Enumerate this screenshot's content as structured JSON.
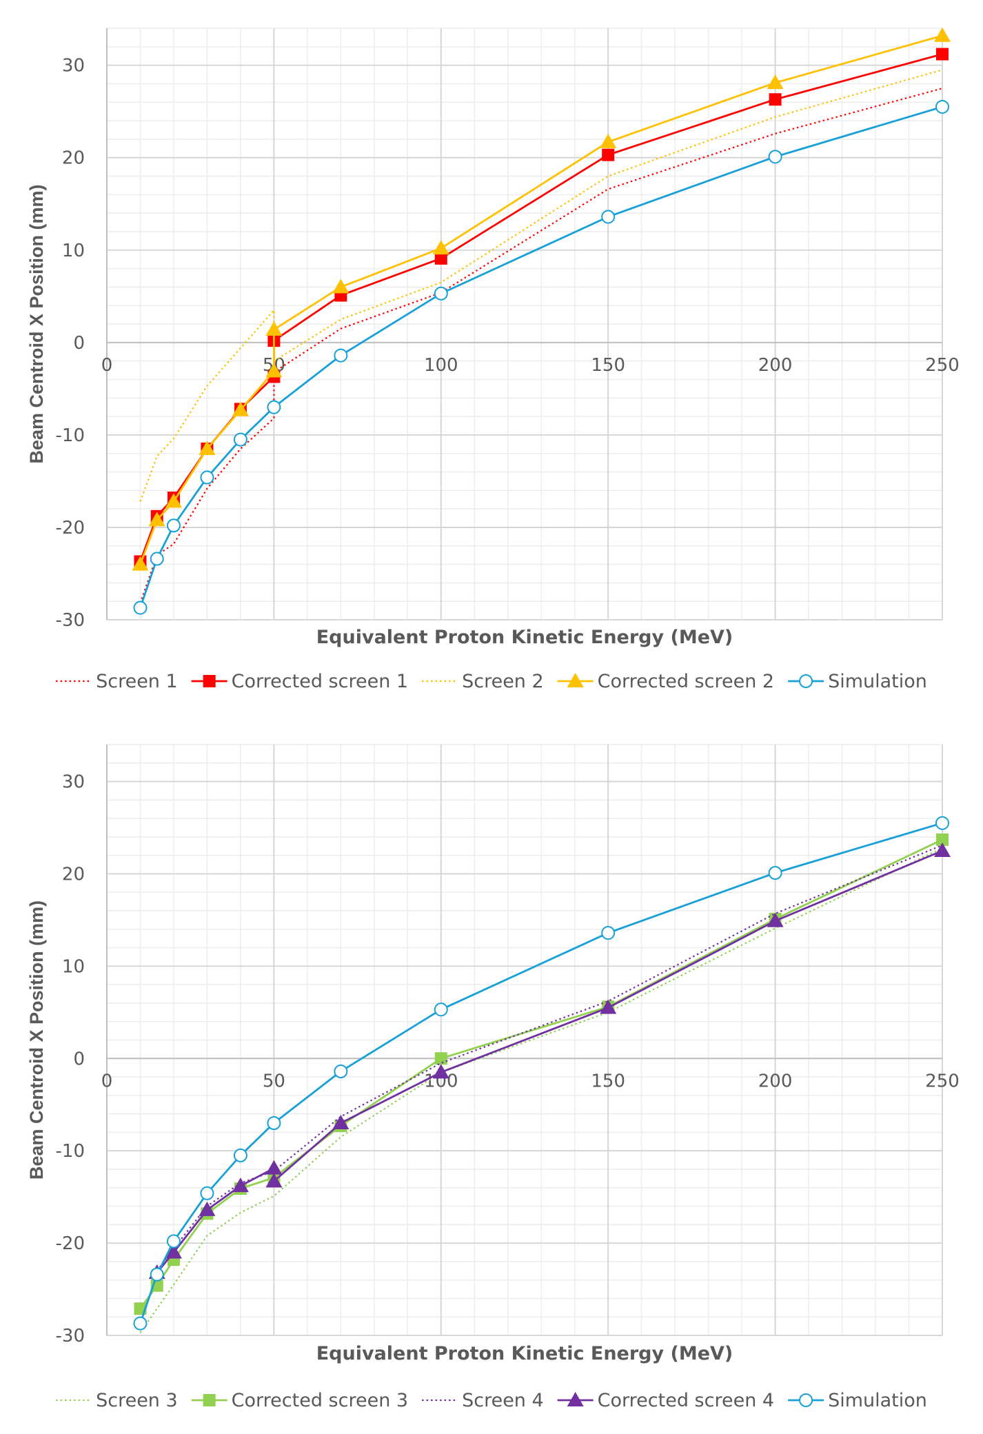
{
  "chart_data": [
    {
      "type": "line",
      "title": "",
      "xlabel": "Equivalent Proton Kinetic Energy (MeV)",
      "ylabel": "Beam Centroid X Position (mm)",
      "xlim": [
        0,
        250
      ],
      "ylim": [
        -30,
        34
      ],
      "xticks": [
        0,
        50,
        100,
        150,
        200,
        250
      ],
      "yticks": [
        -30,
        -20,
        -10,
        0,
        10,
        20,
        30
      ],
      "grid": true,
      "legend_position": "bottom",
      "series": [
        {
          "name": "Screen 1",
          "color": "#FF0000",
          "style": "dotted",
          "marker": "none",
          "x": [
            10,
            15,
            20,
            30,
            40,
            50,
            50,
            70,
            100,
            150,
            200,
            250
          ],
          "y": [
            -28.2,
            -23.0,
            -21.8,
            -15.8,
            -11.5,
            -8.2,
            -3.2,
            1.5,
            5.4,
            16.6,
            22.6,
            27.5
          ]
        },
        {
          "name": "Corrected screen 1",
          "color": "#FF0000",
          "style": "solid",
          "marker": "square",
          "x": [
            10,
            15,
            20,
            30,
            40,
            50,
            50,
            70,
            100,
            150,
            200,
            250
          ],
          "y": [
            -23.7,
            -18.8,
            -16.8,
            -11.5,
            -7.2,
            -3.7,
            0.2,
            5.1,
            9.1,
            20.3,
            26.3,
            31.2
          ]
        },
        {
          "name": "Screen 2",
          "color": "#FFC000",
          "style": "dotted",
          "marker": "none",
          "x": [
            10,
            15,
            20,
            30,
            40,
            50,
            50,
            70,
            100,
            150,
            200,
            250
          ],
          "y": [
            -17.2,
            -12.3,
            -10.4,
            -4.7,
            -0.6,
            3.5,
            -2.0,
            2.5,
            6.5,
            18.0,
            24.4,
            29.5
          ]
        },
        {
          "name": "Corrected screen 2",
          "color": "#FFC000",
          "style": "solid",
          "marker": "triangle",
          "x": [
            10,
            15,
            20,
            30,
            40,
            50,
            50,
            70,
            100,
            150,
            200,
            250
          ],
          "y": [
            -24.0,
            -19.2,
            -17.2,
            -11.5,
            -7.3,
            -3.1,
            1.4,
            6.0,
            10.2,
            21.7,
            28.1,
            33.2
          ]
        },
        {
          "name": "Simulation",
          "color": "#17A0D8",
          "style": "solid",
          "marker": "circle",
          "x": [
            10,
            15,
            20,
            30,
            40,
            50,
            70,
            100,
            150,
            200,
            250
          ],
          "y": [
            -28.7,
            -23.4,
            -19.8,
            -14.6,
            -10.5,
            -7.0,
            -1.4,
            5.3,
            13.6,
            20.1,
            25.5
          ]
        }
      ]
    },
    {
      "type": "line",
      "title": "",
      "xlabel": "Equivalent Proton Kinetic Energy (MeV)",
      "ylabel": "Beam Centroid X Position (mm)",
      "xlim": [
        0,
        250
      ],
      "ylim": [
        -30,
        34
      ],
      "xticks": [
        0,
        50,
        100,
        150,
        200,
        250
      ],
      "yticks": [
        -30,
        -20,
        -10,
        0,
        10,
        20,
        30
      ],
      "grid": true,
      "legend_position": "bottom",
      "series": [
        {
          "name": "Screen 3",
          "color": "#92D050",
          "style": "dotted",
          "marker": "none",
          "x": [
            10,
            20,
            30,
            40,
            50,
            70,
            100,
            150,
            200,
            250
          ],
          "y": [
            -29.7,
            -24.5,
            -19.2,
            -16.7,
            -14.9,
            -8.5,
            -1.5,
            5.0,
            14.1,
            22.8
          ]
        },
        {
          "name": "Corrected screen 3",
          "color": "#92D050",
          "style": "solid",
          "marker": "square",
          "x": [
            10,
            15,
            20,
            30,
            40,
            50,
            70,
            100,
            150,
            200,
            250
          ],
          "y": [
            -27.1,
            -24.6,
            -21.8,
            -16.8,
            -14.1,
            -12.9,
            -7.3,
            0.0,
            5.6,
            15.1,
            23.7
          ]
        },
        {
          "name": "Screen 4",
          "color": "#7030A0",
          "style": "dotted",
          "marker": "none",
          "x": [
            15,
            20,
            30,
            40,
            50,
            70,
            100,
            150,
            200,
            250
          ],
          "y": [
            -23.0,
            -20.6,
            -16.0,
            -13.5,
            -12.2,
            -6.3,
            -0.5,
            6.2,
            15.7,
            23.1
          ]
        },
        {
          "name": "Corrected screen 4",
          "color": "#7030A0",
          "style": "solid",
          "marker": "triangle",
          "x": [
            15,
            20,
            30,
            40,
            50,
            50,
            70,
            100,
            150,
            200,
            250
          ],
          "y": [
            -23.2,
            -21.0,
            -16.4,
            -13.8,
            -11.9,
            -13.3,
            -7.0,
            -1.5,
            5.5,
            14.9,
            22.5
          ]
        },
        {
          "name": "Simulation",
          "color": "#17A0D8",
          "style": "solid",
          "marker": "circle",
          "x": [
            10,
            15,
            20,
            30,
            40,
            50,
            70,
            100,
            150,
            200,
            250
          ],
          "y": [
            -28.7,
            -23.4,
            -19.8,
            -14.6,
            -10.5,
            -7.0,
            -1.4,
            5.3,
            13.6,
            20.1,
            25.5
          ]
        }
      ]
    }
  ]
}
